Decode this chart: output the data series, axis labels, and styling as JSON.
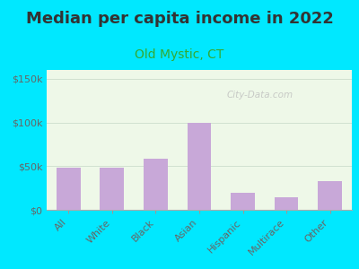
{
  "title": "Median per capita income in 2022",
  "subtitle": "Old Mystic, CT",
  "categories": [
    "All",
    "White",
    "Black",
    "Asian",
    "Hispanic",
    "Multirace",
    "Other"
  ],
  "values": [
    48000,
    48000,
    58000,
    99000,
    20000,
    14000,
    33000
  ],
  "bar_color": "#c8a8d8",
  "background_outer": "#00e8ff",
  "background_inner": "#eef8e8",
  "title_color": "#333333",
  "subtitle_color": "#33aa33",
  "tick_color": "#666666",
  "ylim": [
    0,
    160000
  ],
  "yticks": [
    0,
    50000,
    100000,
    150000
  ],
  "ytick_labels": [
    "$0",
    "$50k",
    "$100k",
    "$150k"
  ],
  "title_fontsize": 13,
  "subtitle_fontsize": 10,
  "watermark_text": "City-Data.com",
  "watermark_color": "#bbbbbb",
  "grid_color": "#ccddcc"
}
